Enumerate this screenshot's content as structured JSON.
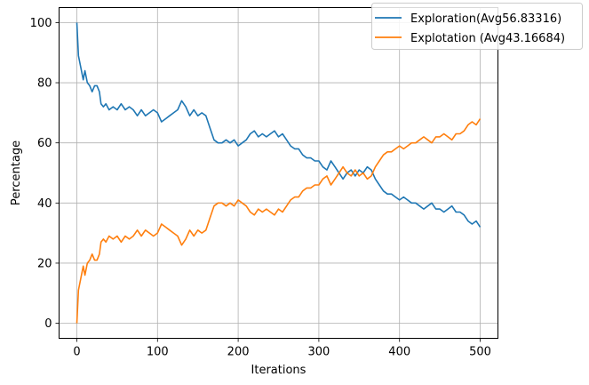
{
  "chart_data": {
    "type": "line",
    "xlabel": "Iterations",
    "ylabel": "Percentage",
    "xlim": [
      -22,
      522
    ],
    "ylim": [
      -5,
      105
    ],
    "xticks": [
      0,
      100,
      200,
      300,
      400,
      500
    ],
    "yticks": [
      0,
      20,
      40,
      60,
      80,
      100
    ],
    "grid": true,
    "legend_position": "top-right",
    "series": [
      {
        "name": "Exploration(Avg56.83316)",
        "color": "#1f77b4",
        "points": [
          [
            0,
            100
          ],
          [
            2,
            89
          ],
          [
            5,
            85
          ],
          [
            8,
            81
          ],
          [
            10,
            84
          ],
          [
            13,
            80
          ],
          [
            16,
            79
          ],
          [
            19,
            77
          ],
          [
            22,
            79
          ],
          [
            25,
            79
          ],
          [
            28,
            77
          ],
          [
            30,
            73
          ],
          [
            33,
            72
          ],
          [
            36,
            73
          ],
          [
            40,
            71
          ],
          [
            45,
            72
          ],
          [
            50,
            71
          ],
          [
            55,
            73
          ],
          [
            60,
            71
          ],
          [
            65,
            72
          ],
          [
            70,
            71
          ],
          [
            75,
            69
          ],
          [
            80,
            71
          ],
          [
            85,
            69
          ],
          [
            90,
            70
          ],
          [
            95,
            71
          ],
          [
            100,
            70
          ],
          [
            105,
            67
          ],
          [
            110,
            68
          ],
          [
            115,
            69
          ],
          [
            120,
            70
          ],
          [
            125,
            71
          ],
          [
            130,
            74
          ],
          [
            135,
            72
          ],
          [
            140,
            69
          ],
          [
            145,
            71
          ],
          [
            150,
            69
          ],
          [
            155,
            70
          ],
          [
            160,
            69
          ],
          [
            165,
            65
          ],
          [
            170,
            61
          ],
          [
            175,
            60
          ],
          [
            180,
            60
          ],
          [
            185,
            61
          ],
          [
            190,
            60
          ],
          [
            195,
            61
          ],
          [
            200,
            59
          ],
          [
            205,
            60
          ],
          [
            210,
            61
          ],
          [
            215,
            63
          ],
          [
            220,
            64
          ],
          [
            225,
            62
          ],
          [
            230,
            63
          ],
          [
            235,
            62
          ],
          [
            240,
            63
          ],
          [
            245,
            64
          ],
          [
            250,
            62
          ],
          [
            255,
            63
          ],
          [
            260,
            61
          ],
          [
            265,
            59
          ],
          [
            270,
            58
          ],
          [
            275,
            58
          ],
          [
            280,
            56
          ],
          [
            285,
            55
          ],
          [
            290,
            55
          ],
          [
            295,
            54
          ],
          [
            300,
            54
          ],
          [
            305,
            52
          ],
          [
            310,
            51
          ],
          [
            315,
            54
          ],
          [
            320,
            52
          ],
          [
            325,
            50
          ],
          [
            330,
            48
          ],
          [
            335,
            50
          ],
          [
            340,
            51
          ],
          [
            345,
            49
          ],
          [
            350,
            51
          ],
          [
            355,
            50
          ],
          [
            360,
            52
          ],
          [
            365,
            51
          ],
          [
            370,
            48
          ],
          [
            375,
            46
          ],
          [
            380,
            44
          ],
          [
            385,
            43
          ],
          [
            390,
            43
          ],
          [
            395,
            42
          ],
          [
            400,
            41
          ],
          [
            405,
            42
          ],
          [
            410,
            41
          ],
          [
            415,
            40
          ],
          [
            420,
            40
          ],
          [
            425,
            39
          ],
          [
            430,
            38
          ],
          [
            435,
            39
          ],
          [
            440,
            40
          ],
          [
            445,
            38
          ],
          [
            450,
            38
          ],
          [
            455,
            37
          ],
          [
            460,
            38
          ],
          [
            465,
            39
          ],
          [
            470,
            37
          ],
          [
            475,
            37
          ],
          [
            480,
            36
          ],
          [
            485,
            34
          ],
          [
            490,
            33
          ],
          [
            495,
            34
          ],
          [
            500,
            32
          ]
        ]
      },
      {
        "name": "Explotation (Avg43.16684)",
        "color": "#ff7f0e",
        "points": [
          [
            0,
            0
          ],
          [
            2,
            11
          ],
          [
            5,
            15
          ],
          [
            8,
            19
          ],
          [
            10,
            16
          ],
          [
            13,
            20
          ],
          [
            16,
            21
          ],
          [
            19,
            23
          ],
          [
            22,
            21
          ],
          [
            25,
            21
          ],
          [
            28,
            23
          ],
          [
            30,
            27
          ],
          [
            33,
            28
          ],
          [
            36,
            27
          ],
          [
            40,
            29
          ],
          [
            45,
            28
          ],
          [
            50,
            29
          ],
          [
            55,
            27
          ],
          [
            60,
            29
          ],
          [
            65,
            28
          ],
          [
            70,
            29
          ],
          [
            75,
            31
          ],
          [
            80,
            29
          ],
          [
            85,
            31
          ],
          [
            90,
            30
          ],
          [
            95,
            29
          ],
          [
            100,
            30
          ],
          [
            105,
            33
          ],
          [
            110,
            32
          ],
          [
            115,
            31
          ],
          [
            120,
            30
          ],
          [
            125,
            29
          ],
          [
            130,
            26
          ],
          [
            135,
            28
          ],
          [
            140,
            31
          ],
          [
            145,
            29
          ],
          [
            150,
            31
          ],
          [
            155,
            30
          ],
          [
            160,
            31
          ],
          [
            165,
            35
          ],
          [
            170,
            39
          ],
          [
            175,
            40
          ],
          [
            180,
            40
          ],
          [
            185,
            39
          ],
          [
            190,
            40
          ],
          [
            195,
            39
          ],
          [
            200,
            41
          ],
          [
            205,
            40
          ],
          [
            210,
            39
          ],
          [
            215,
            37
          ],
          [
            220,
            36
          ],
          [
            225,
            38
          ],
          [
            230,
            37
          ],
          [
            235,
            38
          ],
          [
            240,
            37
          ],
          [
            245,
            36
          ],
          [
            250,
            38
          ],
          [
            255,
            37
          ],
          [
            260,
            39
          ],
          [
            265,
            41
          ],
          [
            270,
            42
          ],
          [
            275,
            42
          ],
          [
            280,
            44
          ],
          [
            285,
            45
          ],
          [
            290,
            45
          ],
          [
            295,
            46
          ],
          [
            300,
            46
          ],
          [
            305,
            48
          ],
          [
            310,
            49
          ],
          [
            315,
            46
          ],
          [
            320,
            48
          ],
          [
            325,
            50
          ],
          [
            330,
            52
          ],
          [
            335,
            50
          ],
          [
            340,
            49
          ],
          [
            345,
            51
          ],
          [
            350,
            49
          ],
          [
            355,
            50
          ],
          [
            360,
            48
          ],
          [
            365,
            49
          ],
          [
            370,
            52
          ],
          [
            375,
            54
          ],
          [
            380,
            56
          ],
          [
            385,
            57
          ],
          [
            390,
            57
          ],
          [
            395,
            58
          ],
          [
            400,
            59
          ],
          [
            405,
            58
          ],
          [
            410,
            59
          ],
          [
            415,
            60
          ],
          [
            420,
            60
          ],
          [
            425,
            61
          ],
          [
            430,
            62
          ],
          [
            435,
            61
          ],
          [
            440,
            60
          ],
          [
            445,
            62
          ],
          [
            450,
            62
          ],
          [
            455,
            63
          ],
          [
            460,
            62
          ],
          [
            465,
            61
          ],
          [
            470,
            63
          ],
          [
            475,
            63
          ],
          [
            480,
            64
          ],
          [
            485,
            66
          ],
          [
            490,
            67
          ],
          [
            495,
            66
          ],
          [
            500,
            68
          ]
        ]
      }
    ]
  }
}
